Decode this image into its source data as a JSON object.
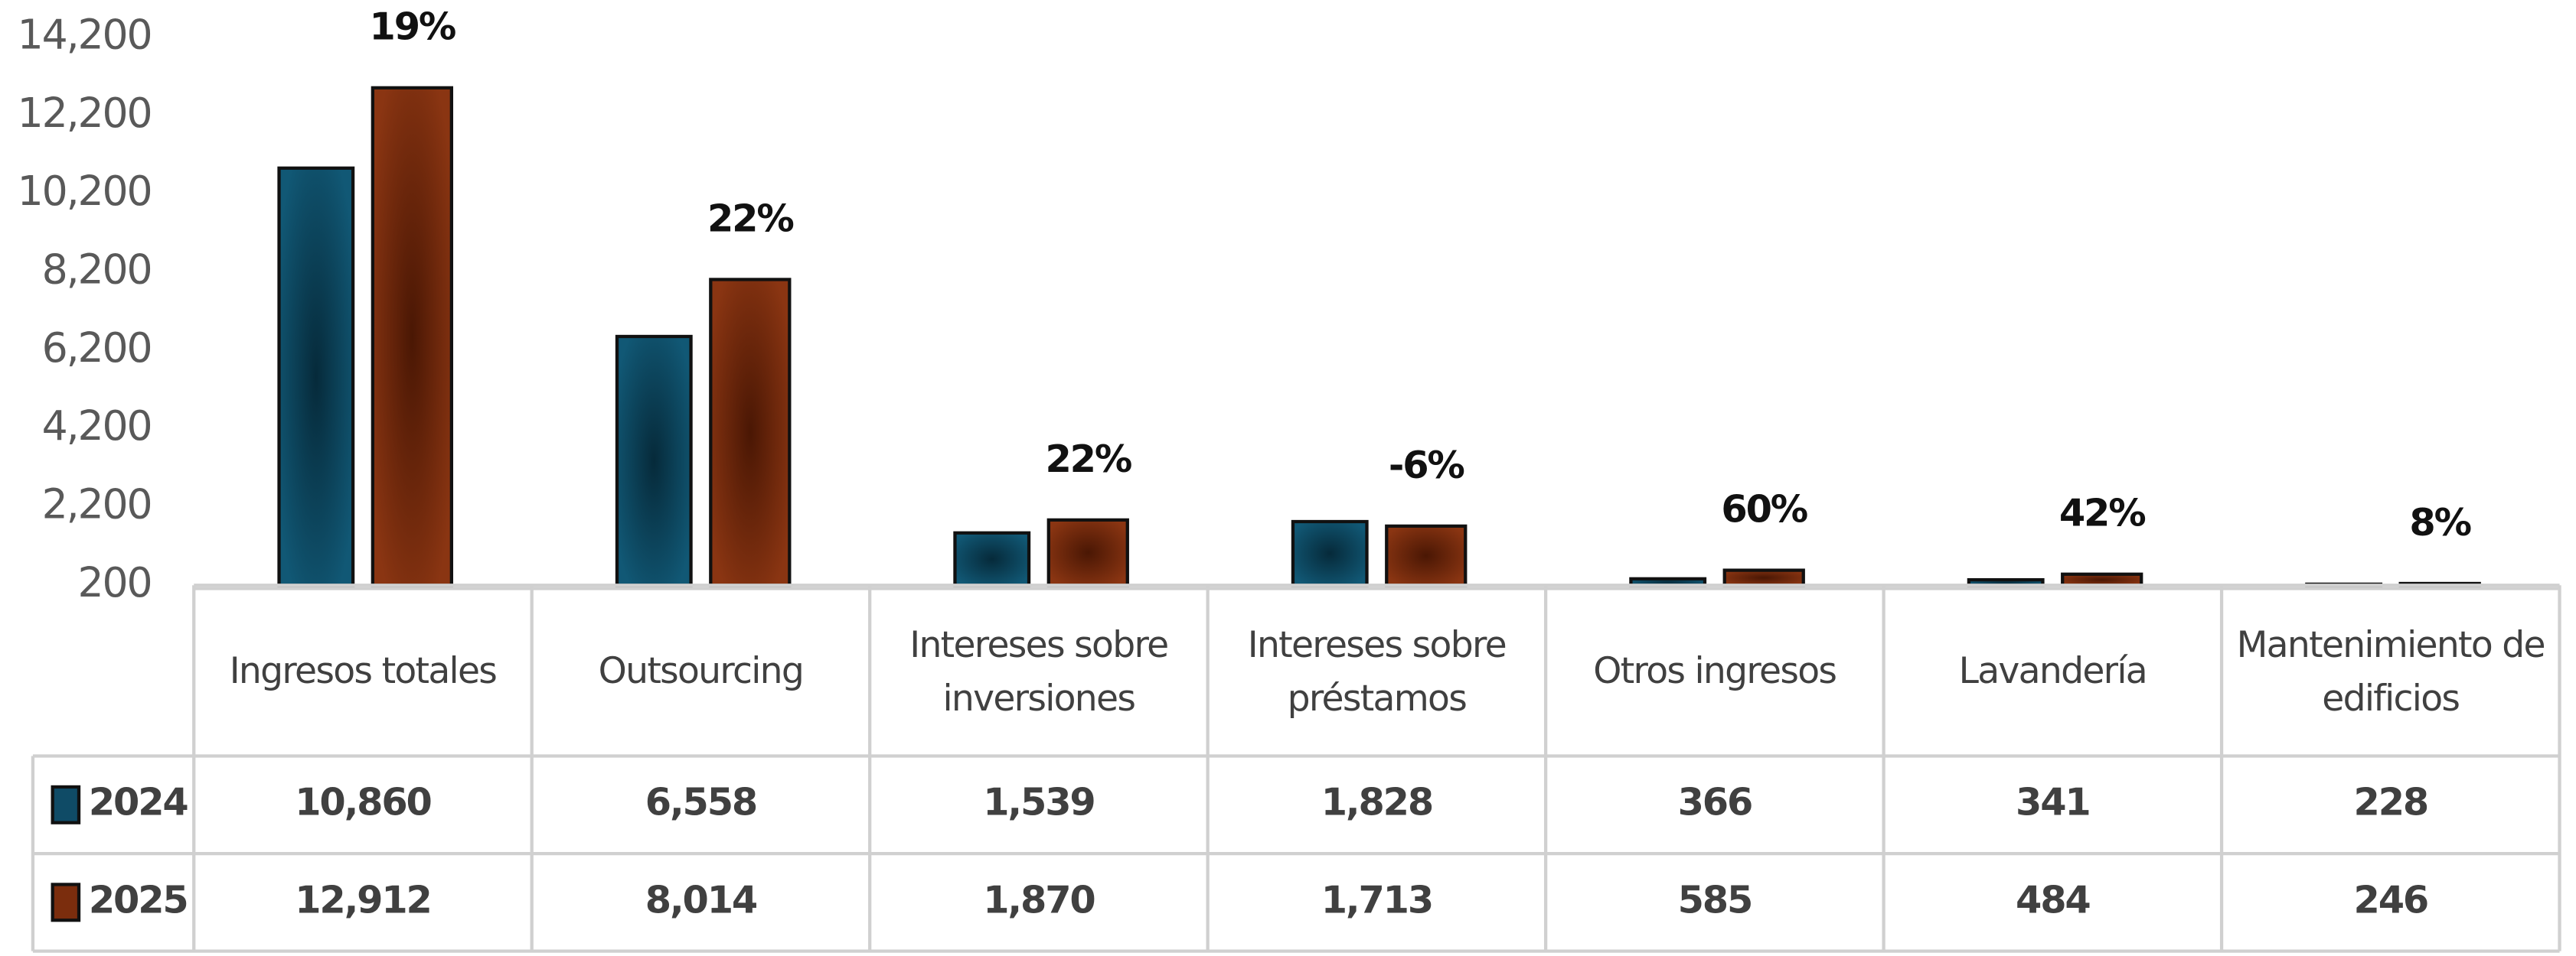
{
  "chart_data": {
    "type": "bar",
    "categories": [
      "Ingresos totales",
      "Outsourcing",
      "Intereses sobre inversiones",
      "Intereses sobre préstamos",
      "Otros ingresos",
      "Lavandería",
      "Mantenimiento de edificios"
    ],
    "series": [
      {
        "name": "2024",
        "color": "#0f4b66",
        "values": [
          10860,
          6558,
          1539,
          1828,
          366,
          341,
          228
        ],
        "value_labels": [
          "10,860",
          "6,558",
          "1,539",
          "1,828",
          "366",
          "341",
          "228"
        ]
      },
      {
        "name": "2025",
        "color": "#7b2d0d",
        "values": [
          12912,
          8014,
          1870,
          1713,
          585,
          484,
          246
        ],
        "value_labels": [
          "12,912",
          "8,014",
          "1,870",
          "1,713",
          "585",
          "484",
          "246"
        ]
      }
    ],
    "annotations": [
      "19%",
      "22%",
      "22%",
      "-6%",
      "60%",
      "42%",
      "8%"
    ],
    "ylim": [
      200,
      14200
    ],
    "yticks": [
      200,
      {
        "value": 2200,
        "label": "2,200"
      },
      {
        "value": 4200,
        "label": "4,200"
      },
      {
        "value": 6200,
        "label": "6,200"
      },
      {
        "value": 8200,
        "label": "8,200"
      },
      {
        "value": 10200,
        "label": "10,200"
      },
      {
        "value": 12200,
        "label": "12,200"
      },
      {
        "value": 14200,
        "label": "14,200"
      }
    ]
  }
}
